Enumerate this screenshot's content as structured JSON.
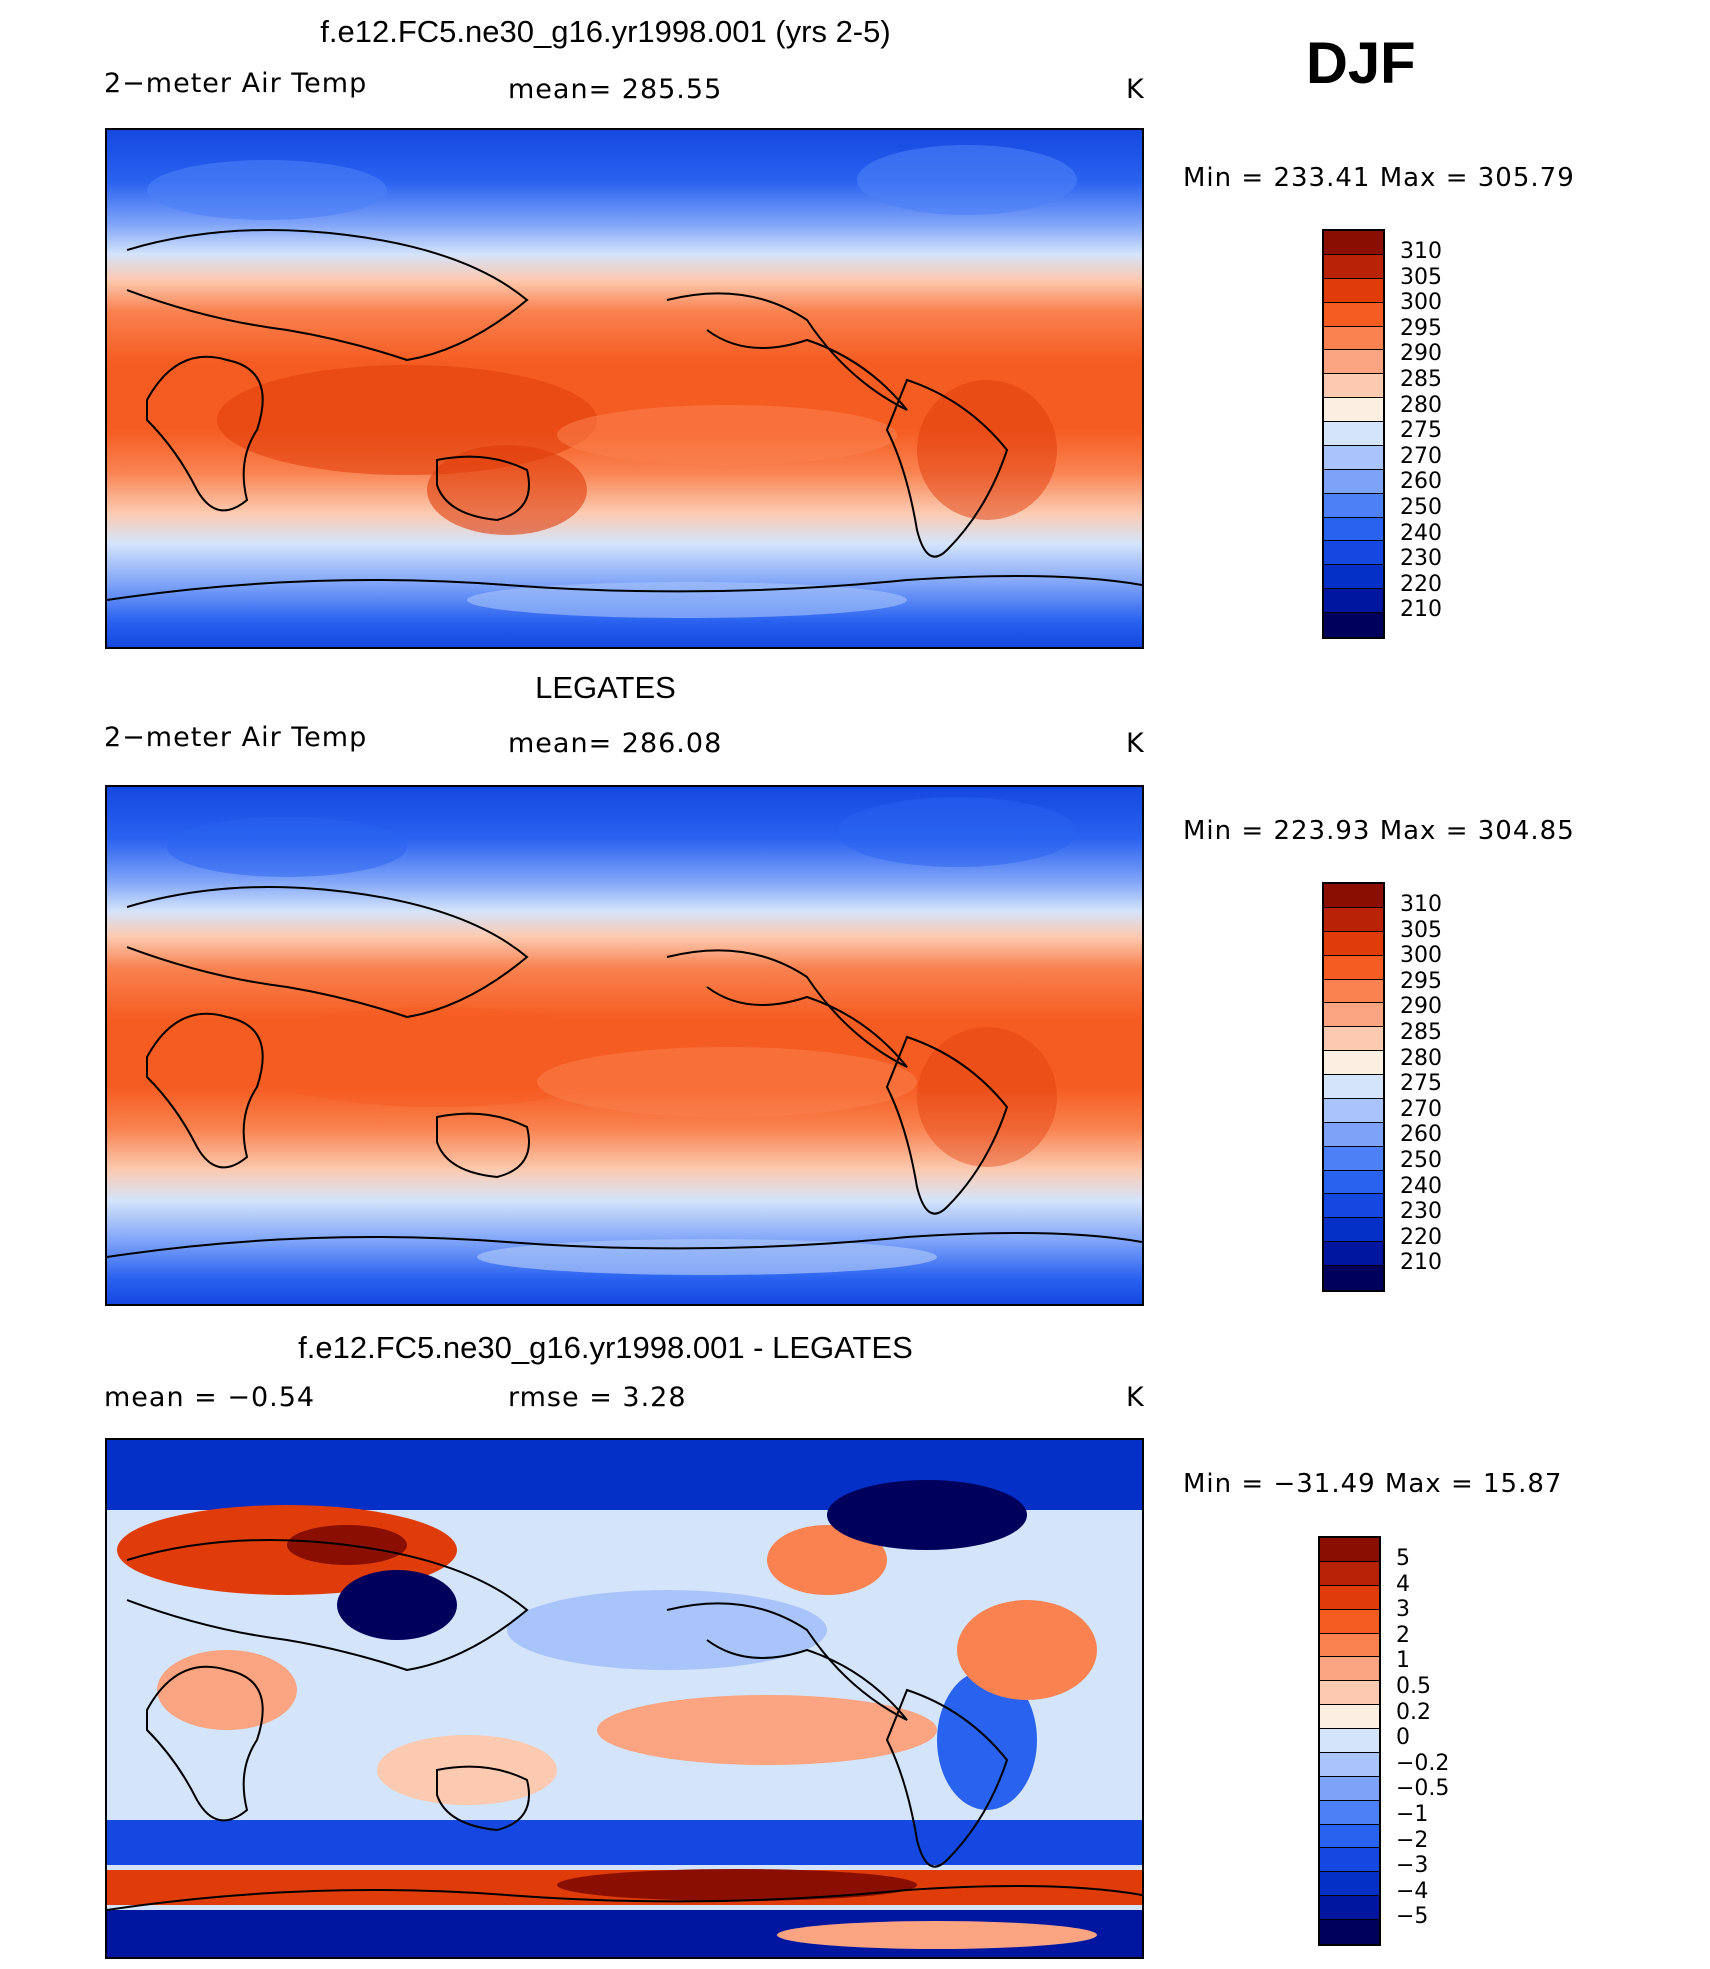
{
  "season_label": "DJF",
  "units": "K",
  "colors": {
    "temp_scale": [
      "#00005c",
      "#0016a0",
      "#0530c8",
      "#1548e0",
      "#2a62f0",
      "#4d80f6",
      "#7da2f8",
      "#a9c4fa",
      "#d4e4fb",
      "#fdeee2",
      "#fccab0",
      "#fba482",
      "#f98250",
      "#f55c22",
      "#e03c0a",
      "#b82206",
      "#8a0f02"
    ],
    "diff_scale": [
      "#00005c",
      "#0016a0",
      "#0530c8",
      "#1548e0",
      "#2a62f0",
      "#4d80f6",
      "#7da2f8",
      "#a9c4fa",
      "#d4e4fb",
      "#fdeee2",
      "#fccab0",
      "#fba482",
      "#f98250",
      "#f55c22",
      "#e03c0a",
      "#b82206",
      "#8a0f02"
    ]
  },
  "panels": [
    {
      "title": "f.e12.FC5.ne30_g16.yr1998.001 (yrs 2-5)",
      "left_label": "2−meter Air Temp",
      "center_label": "mean= 285.55",
      "units": "K",
      "minmax": "Min  =  233.41  Max  =  305.79",
      "legend_ticks": [
        "310",
        "305",
        "300",
        "295",
        "290",
        "285",
        "280",
        "275",
        "270",
        "260",
        "250",
        "240",
        "230",
        "220",
        "210"
      ]
    },
    {
      "title": "LEGATES",
      "left_label": "2−meter Air Temp",
      "center_label": "mean= 286.08",
      "units": "K",
      "minmax": "Min  =  223.93  Max  =  304.85",
      "legend_ticks": [
        "310",
        "305",
        "300",
        "295",
        "290",
        "285",
        "280",
        "275",
        "270",
        "260",
        "250",
        "240",
        "230",
        "220",
        "210"
      ]
    },
    {
      "title": "f.e12.FC5.ne30_g16.yr1998.001 - LEGATES",
      "left_label": "mean =    −0.54",
      "center_label": "rmse =     3.28",
      "units": "K",
      "minmax": "Min  =  −31.49  Max  =    15.87",
      "legend_ticks": [
        "5",
        "4",
        "3",
        "2",
        "1",
        "0.5",
        "0.2",
        "0",
        "−0.2",
        "−0.5",
        "−1",
        "−2",
        "−3",
        "−4",
        "−5"
      ]
    }
  ]
}
